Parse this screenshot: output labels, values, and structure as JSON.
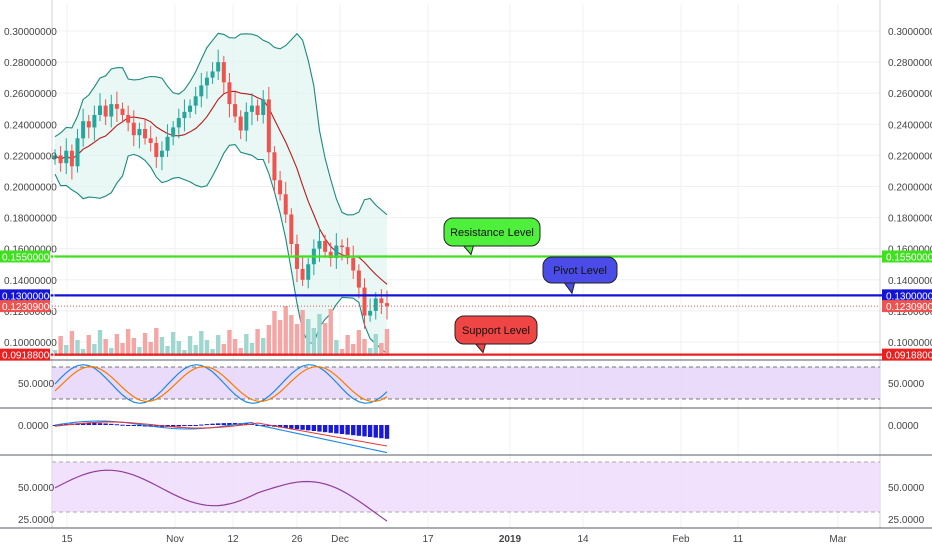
{
  "price_axis": {
    "ticks": [
      "0.30000000",
      "0.28000000",
      "0.26000000",
      "0.24000000",
      "0.22000000",
      "0.20000000",
      "0.18000000",
      "0.16000000",
      "0.14000000",
      "0.12000000",
      "0.10000000"
    ],
    "tick_values": [
      0.3,
      0.28,
      0.26,
      0.24,
      0.22,
      0.2,
      0.18,
      0.16,
      0.14,
      0.12,
      0.1
    ]
  },
  "price_tags": [
    {
      "label": "0.15500000",
      "value": 0.155,
      "color": "#3fe01e"
    },
    {
      "label": "0.13000000",
      "value": 0.13,
      "color": "#1414d6"
    },
    {
      "label": "0.12309000",
      "value": 0.12309,
      "color": "#ef5350"
    },
    {
      "label": "0.09188000",
      "value": 0.09188,
      "color": "#e82020"
    }
  ],
  "annotations": [
    {
      "text": "Resistance Level",
      "color": "#4ef03c",
      "level": 0.155
    },
    {
      "text": "Pivot Level",
      "color": "#4b4be8",
      "level": 0.13
    },
    {
      "text": "Support Level",
      "color": "#f04545",
      "level": 0.09188
    }
  ],
  "x_axis": {
    "labels": [
      "15",
      "Nov",
      "12",
      "26",
      "Dec",
      "17",
      "2019",
      "14",
      "Feb",
      "11",
      "Mar"
    ]
  },
  "stoch_pane": {
    "ticks": [
      "50.0000"
    ],
    "tick_values": [
      50
    ]
  },
  "macd_pane": {
    "ticks": [
      "0.0000"
    ],
    "tick_values": [
      0
    ]
  },
  "rsi_pane": {
    "ticks": [
      "50.0000",
      "25.0000"
    ],
    "tick_values": [
      50,
      25
    ]
  },
  "colors": {
    "up": "#26a69a",
    "down": "#ef5350",
    "bollinger": "#1a8a7c",
    "basis": "#b71c1c",
    "stoch_fill": "#e6d2fa",
    "rsi_fill": "#efdcfb",
    "macd_hist": "#1a1ad6"
  },
  "chart_data": {
    "type": "line",
    "title": "",
    "xlabel": "",
    "ylabel": "",
    "ylim": [
      0.09,
      0.31
    ],
    "candles_close": [
      0.22,
      0.215,
      0.223,
      0.213,
      0.231,
      0.242,
      0.238,
      0.246,
      0.252,
      0.245,
      0.253,
      0.25,
      0.246,
      0.241,
      0.233,
      0.237,
      0.231,
      0.228,
      0.219,
      0.223,
      0.232,
      0.238,
      0.244,
      0.248,
      0.252,
      0.258,
      0.265,
      0.27,
      0.274,
      0.28,
      0.267,
      0.253,
      0.245,
      0.236,
      0.248,
      0.252,
      0.246,
      0.256,
      0.222,
      0.204,
      0.195,
      0.182,
      0.163,
      0.147,
      0.14,
      0.15,
      0.16,
      0.165,
      0.158,
      0.154,
      0.162,
      0.161,
      0.154,
      0.146,
      0.135,
      0.117,
      0.12,
      0.128,
      0.125,
      0.123
    ]
  }
}
